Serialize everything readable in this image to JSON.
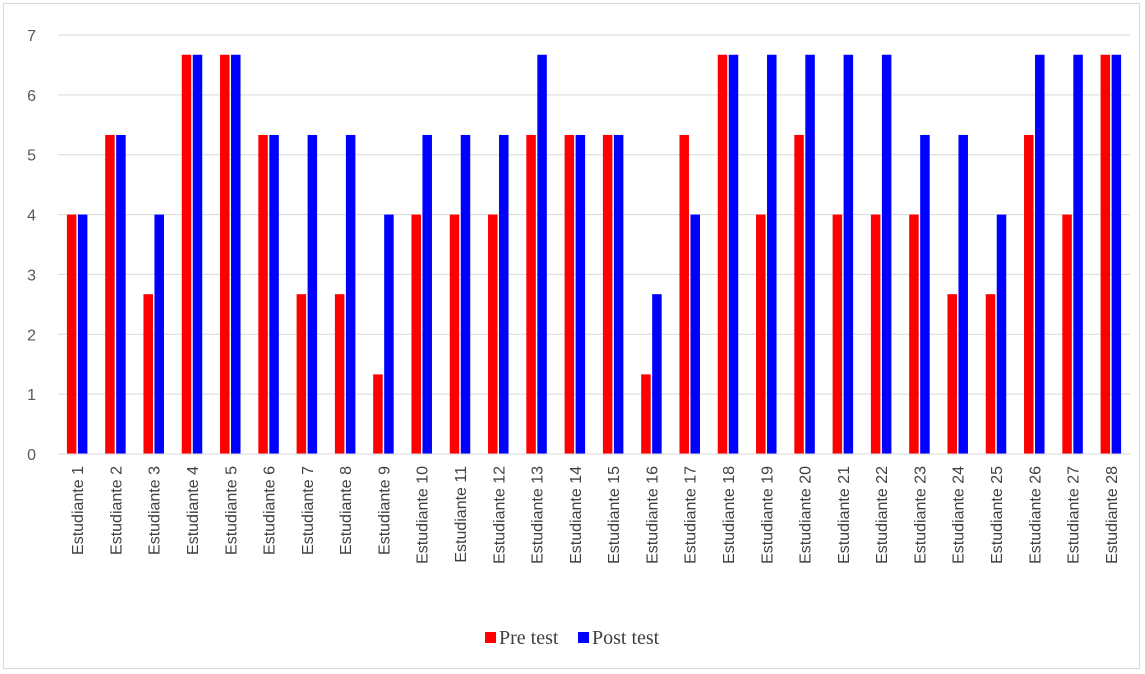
{
  "chart_data": {
    "type": "bar",
    "title": "",
    "xlabel": "",
    "ylabel": "",
    "ylim": [
      0,
      7
    ],
    "yticks": [
      0,
      1,
      2,
      3,
      4,
      5,
      6,
      7
    ],
    "grid": true,
    "legend_position": "bottom",
    "categories": [
      "Estudiante 1",
      "Estudiante 2",
      "Estudiante 3",
      "Estudiante 4",
      "Estudiante 5",
      "Estudiante 6",
      "Estudiante 7",
      "Estudiante 8",
      "Estudiante 9",
      "Estudiante 10",
      "Estudiante 11",
      "Estudiante 12",
      "Estudiante 13",
      "Estudiante 14",
      "Estudiante 15",
      "Estudiante 16",
      "Estudiante 17",
      "Estudiante 18",
      "Estudiante 19",
      "Estudiante 20",
      "Estudiante 21",
      "Estudiante 22",
      "Estudiante 23",
      "Estudiante 24",
      "Estudiante 25",
      "Estudiante 26",
      "Estudiante 27",
      "Estudiante 28"
    ],
    "series": [
      {
        "name": "Pre test",
        "color": "#ff0000",
        "values": [
          4,
          5.33,
          2.67,
          6.67,
          6.67,
          5.33,
          2.67,
          2.67,
          1.33,
          4,
          4,
          4,
          5.33,
          5.33,
          5.33,
          1.33,
          5.33,
          6.67,
          4,
          5.33,
          4,
          4,
          4,
          2.67,
          2.67,
          5.33,
          4,
          6.67
        ]
      },
      {
        "name": "Post test",
        "color": "#0000ff",
        "values": [
          4,
          5.33,
          4,
          6.67,
          6.67,
          5.33,
          5.33,
          5.33,
          4,
          5.33,
          5.33,
          5.33,
          6.67,
          5.33,
          5.33,
          2.67,
          4,
          6.67,
          6.67,
          6.67,
          6.67,
          6.67,
          5.33,
          5.33,
          4,
          6.67,
          6.67,
          6.67
        ]
      }
    ]
  }
}
